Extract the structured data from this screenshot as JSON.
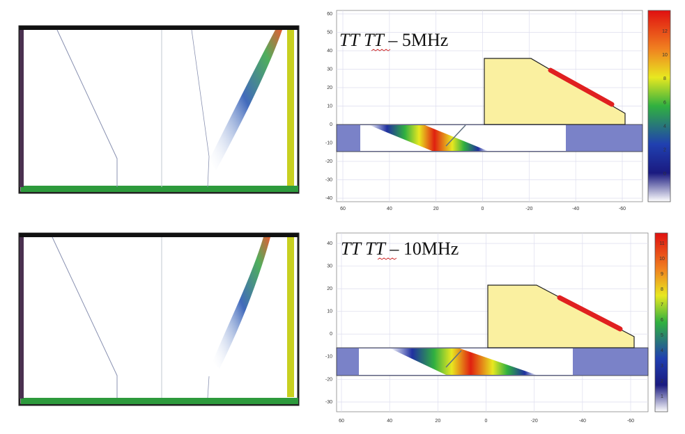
{
  "panels": [
    {
      "title_italic": "TT TT",
      "title_rest": "– 5MHz",
      "yticks": [
        60,
        50,
        40,
        30,
        20,
        10,
        0,
        -10,
        -20,
        -30,
        -40
      ],
      "xticks": [
        60,
        40,
        20,
        0,
        -20,
        -40,
        -60
      ],
      "colorbar_ticks": [
        12,
        10,
        8,
        6,
        4,
        2,
        0
      ]
    },
    {
      "title_italic": "TT TT",
      "title_rest": "– 10MHz",
      "yticks": [
        40,
        30,
        20,
        10,
        0,
        -10,
        -20,
        -30
      ],
      "xticks": [
        60,
        40,
        20,
        0,
        -20,
        -40,
        -60
      ],
      "colorbar_ticks": [
        11,
        10,
        9,
        8,
        7,
        6,
        5,
        4,
        3,
        2,
        1
      ]
    }
  ]
}
